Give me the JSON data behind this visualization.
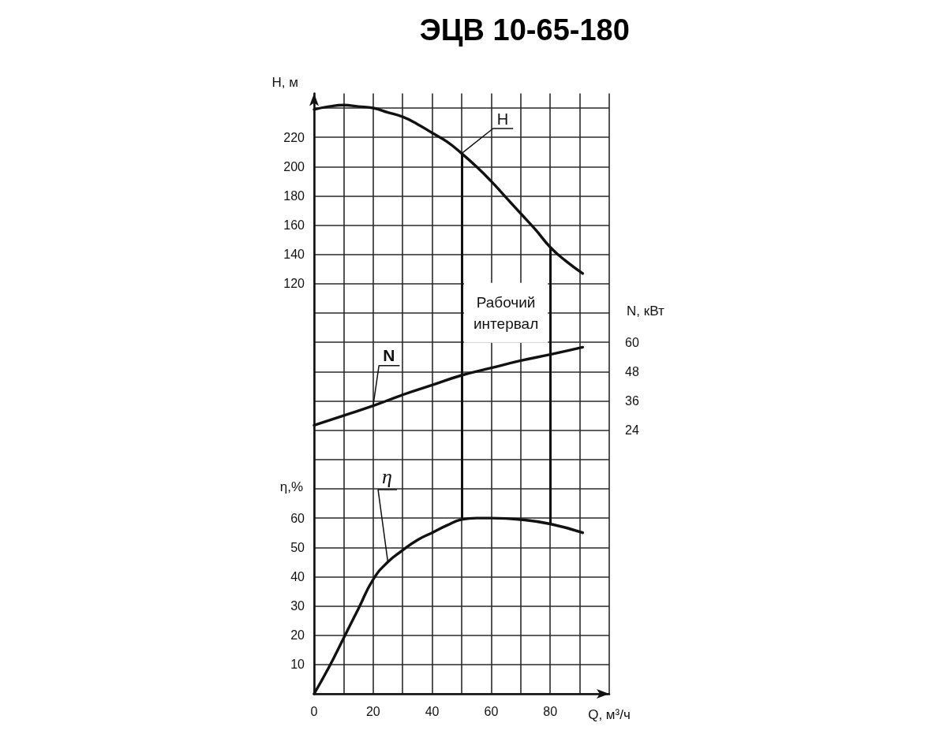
{
  "chart_data": {
    "type": "line",
    "title": "ЭЦВ 10-65-180",
    "xlabel": "Q, м³/ч",
    "ylabel": "H, м",
    "y2label": "N, кВт",
    "y3label": "η,%",
    "xlim": [
      0,
      100
    ],
    "xticks": [
      0,
      {
        "value": 10,
        "label": null
      },
      20,
      {
        "value": 30,
        "label": null
      },
      40,
      {
        "value": 50,
        "label": null
      },
      60,
      {
        "value": 70,
        "label": null
      },
      80,
      {
        "value": 90,
        "label": null
      },
      {
        "value": 100,
        "label": null
      }
    ],
    "ylim": [
      -160,
      250
    ],
    "yticks": [
      120,
      140,
      160,
      180,
      200,
      220
    ],
    "y2lim": [
      -84,
      162
    ],
    "y2ticks": [
      24,
      36,
      48,
      60
    ],
    "y3lim": [
      0,
      205
    ],
    "y3ticks": [
      {
        "value": 0,
        "label": null
      },
      10,
      20,
      30,
      40,
      50,
      60,
      {
        "value": 70,
        "label": null
      },
      {
        "value": 80,
        "label": null
      },
      {
        "value": 90,
        "label": null
      },
      {
        "value": 100,
        "label": null
      },
      {
        "value": 110,
        "label": null
      },
      {
        "value": 120,
        "label": null
      },
      {
        "value": 130,
        "label": null
      },
      {
        "value": 140,
        "label": null
      },
      {
        "value": 150,
        "label": null
      },
      {
        "value": 160,
        "label": null
      },
      {
        "value": 170,
        "label": null
      },
      {
        "value": 180,
        "label": null
      },
      {
        "value": 190,
        "label": null
      },
      {
        "value": 200,
        "label": null
      }
    ],
    "grid": true,
    "marker": "none",
    "series": [
      {
        "name": "H",
        "color": "#111111",
        "x": [
          0,
          5,
          10,
          15,
          20,
          25,
          30,
          35,
          40,
          45,
          50,
          55,
          60,
          65,
          70,
          75,
          80,
          85,
          91
        ],
        "values": [
          239,
          241,
          242,
          241,
          240,
          237,
          234,
          229,
          223,
          217,
          209,
          200,
          190,
          179,
          168,
          157,
          145,
          136,
          127
        ]
      },
      {
        "name": "N",
        "color": "#111111",
        "axis": "y2",
        "x": [
          0,
          10,
          20,
          30,
          40,
          50,
          60,
          70,
          80,
          91
        ],
        "values": [
          26,
          30,
          34,
          38.5,
          42.5,
          46.5,
          49.5,
          52.5,
          55,
          58
        ]
      },
      {
        "name": "η",
        "color": "#111111",
        "axis": "y3",
        "x": [
          0,
          5,
          10,
          15,
          20,
          25,
          30,
          35,
          40,
          45,
          50,
          55,
          60,
          70,
          80,
          91
        ],
        "values": [
          0,
          9,
          19,
          29,
          39,
          45,
          49,
          52.5,
          55,
          57.5,
          59.5,
          60,
          60,
          59.5,
          58,
          55
        ]
      }
    ],
    "ref_lines": [
      {
        "axis": "x",
        "value": 50,
        "color": "#111111"
      },
      {
        "axis": "x",
        "value": 80,
        "color": "#111111"
      }
    ],
    "annotations": [
      "Рабочий интервал"
    ]
  }
}
